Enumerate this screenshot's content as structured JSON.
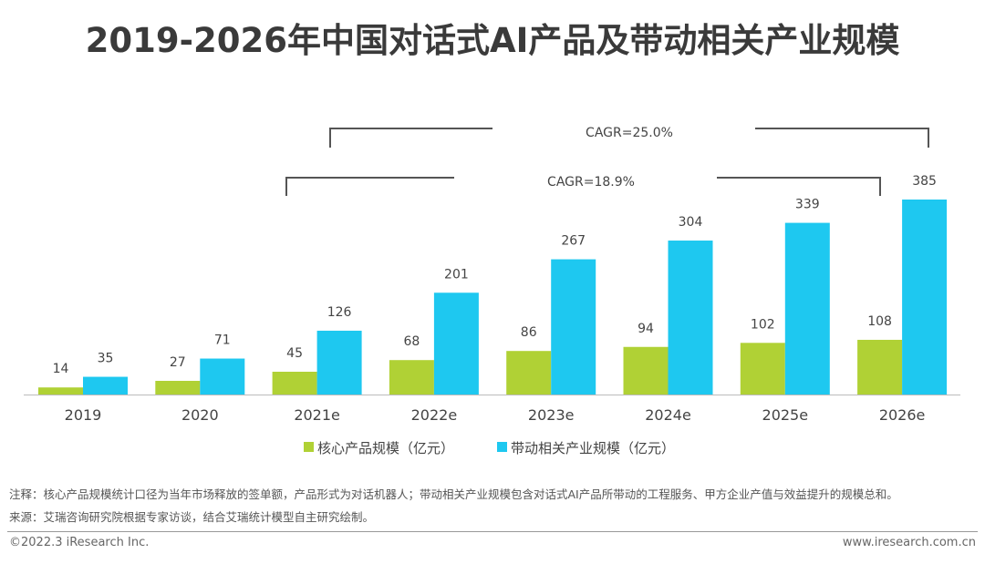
{
  "chart_data": {
    "type": "bar",
    "title": "2019-2026年中国对话式AI产品及带动相关产业规模",
    "categories": [
      "2019",
      "2020",
      "2021e",
      "2022e",
      "2023e",
      "2024e",
      "2025e",
      "2026e"
    ],
    "series": [
      {
        "name": "核心产品规模（亿元）",
        "color": "#b0d135",
        "values": [
          14,
          27,
          45,
          68,
          86,
          94,
          102,
          108
        ]
      },
      {
        "name": "带动相关产业规模（亿元）",
        "color": "#1ec8f0",
        "values": [
          35,
          71,
          126,
          201,
          267,
          304,
          339,
          385
        ]
      }
    ],
    "annotations": [
      {
        "text": "CAGR=25.0%",
        "from": "2021e",
        "to": "2026e",
        "series": "带动相关产业规模（亿元）"
      },
      {
        "text": "CAGR=18.9%",
        "from": "2021e",
        "to": "2026e",
        "series": "核心产品规模（亿元）"
      }
    ],
    "xlabel": "",
    "ylabel": "",
    "ylim": [
      0,
      400
    ],
    "grid": false,
    "legend": "bottom"
  },
  "notes": {
    "note": "注释：核心产品规模统计口径为当年市场释放的签单额，产品形式为对话机器人；带动相关产业规模包含对话式AI产品所带动的工程服务、甲方企业产值与效益提升的规模总和。",
    "source": "来源：艾瑞咨询研究院根据专家访谈，结合艾瑞统计模型自主研究绘制。"
  },
  "footer": {
    "copyright": "©2022.3 iResearch Inc.",
    "website": "www.iresearch.com.cn"
  }
}
